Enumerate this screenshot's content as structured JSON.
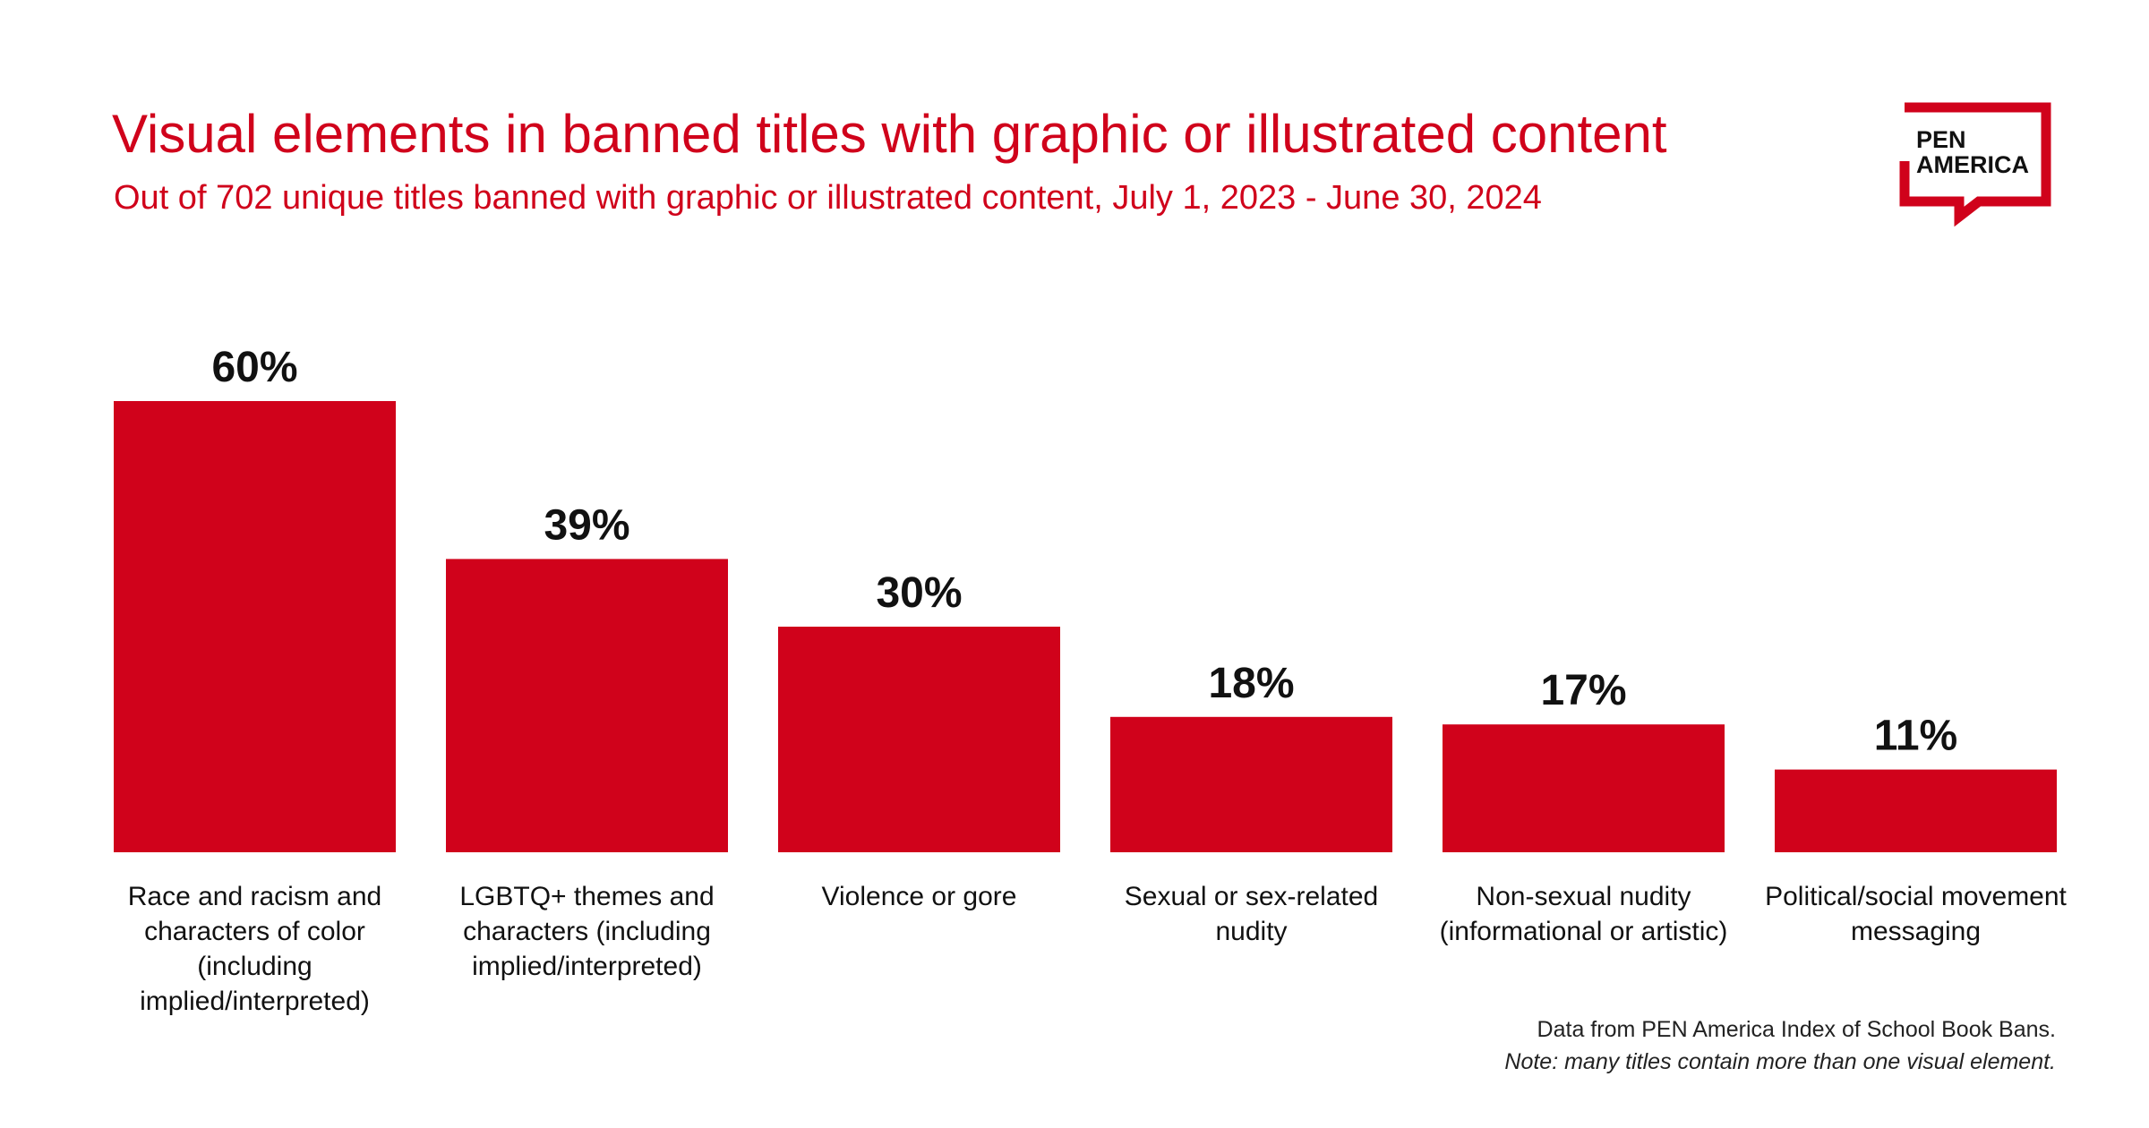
{
  "logo": {
    "line1": "PEN",
    "line2": "AMERICA"
  },
  "chart_data": {
    "type": "bar",
    "title": "Visual elements in banned titles with graphic or illustrated content",
    "subtitle": "Out of 702 unique titles banned with graphic or illustrated content, July 1, 2023 - June 30, 2024",
    "categories": [
      "Race and racism and characters of color (including implied/interpreted)",
      "LGBTQ+ themes and characters (including implied/interpreted)",
      "Violence or gore",
      "Sexual or sex-related nudity",
      "Non-sexual nudity (informational or artistic)",
      "Political/social movement messaging"
    ],
    "values": [
      60,
      39,
      30,
      18,
      17,
      11
    ],
    "value_labels": [
      "60%",
      "39%",
      "30%",
      "18%",
      "17%",
      "11%"
    ],
    "color": "#d0021b",
    "source": "Data from PEN America Index of School Book Bans.",
    "note": "Note: many titles contain more than one visual element."
  }
}
